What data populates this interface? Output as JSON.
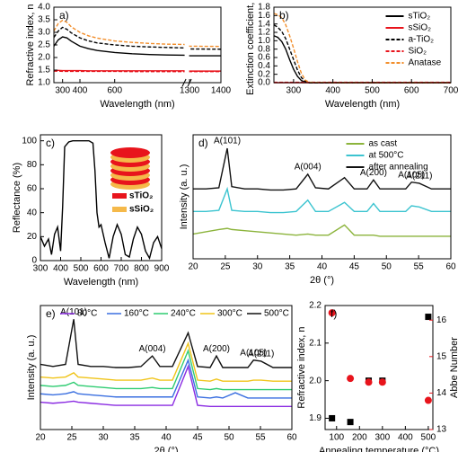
{
  "chart_data": [
    {
      "type": "line",
      "panel_label": "a)",
      "xlabel": "Wavelength (nm)",
      "ylabel": "Refractive index, n",
      "x": [
        250,
        275,
        300,
        325,
        350,
        400,
        450,
        500,
        600,
        700,
        800,
        900,
        1000,
        1300,
        1400
      ],
      "xlim": [
        250,
        1400
      ],
      "xbreak": [
        1000,
        1300
      ],
      "xticks": [
        300,
        400,
        600,
        1300,
        1400
      ],
      "ylim": [
        1.0,
        4.0
      ],
      "yticks": [
        {
          "value": 1,
          "label": "1.0"
        },
        1.5,
        {
          "value": 2,
          "label": "2.0"
        },
        2.5,
        {
          "value": 3,
          "label": "3.0"
        },
        3.5,
        {
          "value": 4,
          "label": "4.0"
        }
      ],
      "series": [
        {
          "color": "#000000",
          "dash": false,
          "values": [
            2.45,
            2.7,
            2.82,
            2.78,
            2.65,
            2.45,
            2.35,
            2.28,
            2.2,
            2.15,
            2.12,
            2.1,
            2.09,
            2.07,
            2.07
          ]
        },
        {
          "color": "#e8141c",
          "dash": false,
          "values": [
            1.49,
            1.49,
            1.48,
            1.48,
            1.48,
            1.48,
            1.47,
            1.47,
            1.47,
            1.47,
            1.47,
            1.47,
            1.47,
            1.46,
            1.46
          ]
        },
        {
          "color": "#000000",
          "dash": true,
          "values": [
            2.8,
            3.05,
            3.2,
            3.12,
            2.98,
            2.78,
            2.66,
            2.58,
            2.5,
            2.45,
            2.42,
            2.4,
            2.38,
            2.34,
            2.33
          ]
        },
        {
          "color": "#e8141c",
          "dash": true,
          "values": [
            1.46,
            1.46,
            1.45,
            1.45,
            1.45,
            1.45,
            1.45,
            1.45,
            1.45,
            1.44,
            1.44,
            1.44,
            1.44,
            1.44,
            1.44
          ]
        },
        {
          "color": "#f28e2b",
          "dash": true,
          "values": [
            3.05,
            3.35,
            3.48,
            3.4,
            3.22,
            3.0,
            2.86,
            2.77,
            2.66,
            2.6,
            2.56,
            2.53,
            2.52,
            2.45,
            2.44
          ]
        }
      ]
    },
    {
      "type": "line",
      "panel_label": "b)",
      "xlabel": "Wavelength (nm)",
      "ylabel": "Extinction coefficient, k",
      "x": [
        250,
        260,
        270,
        280,
        290,
        300,
        310,
        320,
        330,
        340,
        400,
        500,
        600,
        700
      ],
      "xlim": [
        250,
        700
      ],
      "xticks": [
        300,
        400,
        500,
        600,
        700
      ],
      "ylim": [
        0,
        1.8
      ],
      "yticks": [
        {
          "value": 0,
          "label": "0.0"
        },
        0.2,
        0.4,
        0.6,
        0.8,
        {
          "value": 1,
          "label": "1.0"
        },
        1.2,
        1.4,
        1.6,
        1.8
      ],
      "legend": "upper right",
      "series": [
        {
          "name": "sTiO₂",
          "color": "#000000",
          "dash": false,
          "values": [
            1.12,
            1.08,
            0.98,
            0.8,
            0.55,
            0.32,
            0.15,
            0.05,
            0.01,
            0,
            0,
            0,
            0,
            0
          ]
        },
        {
          "name": "sSiO₂",
          "color": "#e8141c",
          "dash": false,
          "values": [
            0,
            0,
            0,
            0,
            0,
            0,
            0,
            0,
            0,
            0,
            0,
            0,
            0,
            0
          ]
        },
        {
          "name": "a-TiO₂",
          "color": "#000000",
          "dash": true,
          "values": [
            1.38,
            1.32,
            1.22,
            1.05,
            0.8,
            0.55,
            0.3,
            0.12,
            0.03,
            0,
            0,
            0,
            0,
            0
          ]
        },
        {
          "name": "SiO₂",
          "color": "#e8141c",
          "dash": true,
          "values": [
            0.01,
            0.01,
            0.01,
            0.01,
            0.01,
            0.01,
            0.01,
            0.01,
            0.01,
            0.01,
            0.01,
            0.01,
            0.01,
            0.01
          ]
        },
        {
          "name": "Anatase",
          "color": "#f28e2b",
          "dash": true,
          "values": [
            1.65,
            1.62,
            1.55,
            1.38,
            1.12,
            0.82,
            0.5,
            0.22,
            0.06,
            0.01,
            0,
            0,
            0,
            0
          ]
        }
      ]
    },
    {
      "type": "line",
      "panel_label": "c)",
      "xlabel": "Wavelength (nm)",
      "ylabel": "Reflectance (%)",
      "x": [
        300,
        320,
        340,
        355,
        370,
        385,
        400,
        410,
        420,
        440,
        460,
        500,
        540,
        560,
        570,
        580,
        590,
        600,
        620,
        640,
        660,
        680,
        700,
        720,
        740,
        760,
        780,
        800,
        820,
        840,
        860,
        880,
        900
      ],
      "xlim": [
        300,
        900
      ],
      "xticks": [
        300,
        400,
        500,
        600,
        700,
        800,
        900
      ],
      "ylim": [
        0,
        105
      ],
      "yticks": [
        0,
        20,
        40,
        60,
        80,
        100
      ],
      "inset_legend": [
        {
          "name": "sTiO₂",
          "color": "#e8141c"
        },
        {
          "name": "sSiO₂",
          "color": "#f5b94a"
        }
      ],
      "series": [
        {
          "color": "#000000",
          "dash": false,
          "values": [
            20,
            12,
            18,
            5,
            22,
            28,
            8,
            45,
            95,
            99,
            100,
            100,
            100,
            98,
            75,
            40,
            28,
            30,
            15,
            2,
            20,
            30,
            22,
            5,
            3,
            18,
            28,
            22,
            8,
            2,
            15,
            20,
            10
          ]
        }
      ]
    },
    {
      "type": "line",
      "panel_label": "d)",
      "xlabel": "2θ (°)",
      "ylabel": "Intensity (a. u.)",
      "x": [
        20,
        22,
        24,
        25.3,
        26,
        28,
        30,
        32,
        34,
        36,
        37.8,
        39,
        41,
        43.5,
        45,
        47,
        48,
        49,
        51,
        53,
        53.9,
        55.1,
        57,
        60
      ],
      "xlim": [
        20,
        60
      ],
      "xticks": [
        20,
        25,
        30,
        35,
        40,
        45,
        50,
        55,
        60
      ],
      "ylim": [
        0,
        110
      ],
      "legend": "upper right",
      "annotations": [
        {
          "text": "A(101)",
          "x": 25.3
        },
        {
          "text": "A(004)",
          "x": 37.8
        },
        {
          "text": "A(200)",
          "x": 48
        },
        {
          "text": "A(105)",
          "x": 53.9
        },
        {
          "text": "A(211)",
          "x": 55.1
        }
      ],
      "series": [
        {
          "name": "as cast",
          "color": "#8cb43c",
          "dash": false,
          "values": [
            22,
            24,
            26,
            27,
            26,
            25,
            24,
            23,
            22,
            21,
            22,
            21,
            21,
            30,
            21,
            21,
            21,
            20,
            20,
            20,
            20,
            20,
            20,
            20
          ]
        },
        {
          "name": "at 500°C",
          "color": "#3cc4d0",
          "dash": false,
          "values": [
            42,
            42,
            43,
            62,
            43,
            42,
            42,
            41,
            41,
            42,
            52,
            42,
            42,
            50,
            42,
            42,
            49,
            42,
            42,
            42,
            47,
            46,
            42,
            42
          ]
        },
        {
          "name": "after annealing",
          "color": "#111111",
          "dash": false,
          "values": [
            62,
            62,
            63,
            98,
            64,
            62,
            62,
            61,
            61,
            62,
            75,
            63,
            62,
            72,
            62,
            62,
            70,
            62,
            62,
            62,
            68,
            67,
            62,
            62
          ]
        }
      ]
    },
    {
      "type": "line",
      "panel_label": "e)",
      "xlabel": "2θ (°)",
      "ylabel": "Intensity (a. u.)",
      "x": [
        20,
        22,
        24,
        25.3,
        26,
        28,
        30,
        32,
        34,
        36,
        37.8,
        39,
        41,
        43.5,
        45,
        47,
        48,
        49,
        51,
        53,
        53.9,
        55.1,
        57,
        60
      ],
      "xlim": [
        20,
        60
      ],
      "xticks": [
        20,
        25,
        30,
        35,
        40,
        45,
        50,
        55,
        60
      ],
      "ylim": [
        0,
        118
      ],
      "legend": "top",
      "annotations": [
        {
          "text": "A(101)",
          "x": 25.3
        },
        {
          "text": "A(004)",
          "x": 37.8
        },
        {
          "text": "A(200)",
          "x": 48
        },
        {
          "text": "A(105)",
          "x": 53.9
        },
        {
          "text": "A(211)",
          "x": 55.1
        }
      ],
      "series": [
        {
          "name": "80°C",
          "color": "#8a2be2",
          "dash": false,
          "values": [
            26,
            25,
            26,
            27,
            26,
            25,
            24,
            23,
            23,
            23,
            23,
            23,
            23,
            60,
            23,
            22,
            22,
            22,
            22,
            22,
            22,
            22,
            22,
            22
          ]
        },
        {
          "name": "160°C",
          "color": "#3a6fe0",
          "dash": false,
          "values": [
            34,
            33,
            34,
            36,
            34,
            33,
            32,
            31,
            31,
            31,
            31,
            31,
            31,
            66,
            31,
            30,
            31,
            30,
            35,
            30,
            30,
            30,
            30,
            30
          ]
        },
        {
          "name": "240°C",
          "color": "#2ecc71",
          "dash": false,
          "values": [
            42,
            41,
            42,
            45,
            42,
            41,
            40,
            39,
            39,
            39,
            40,
            39,
            39,
            75,
            39,
            38,
            39,
            38,
            38,
            38,
            38,
            38,
            38,
            38
          ]
        },
        {
          "name": "300°C",
          "color": "#f0c419",
          "dash": false,
          "values": [
            50,
            49,
            50,
            54,
            50,
            49,
            48,
            47,
            47,
            47,
            49,
            47,
            47,
            82,
            47,
            46,
            48,
            46,
            46,
            46,
            47,
            47,
            46,
            46
          ]
        },
        {
          "name": "500°C",
          "color": "#111111",
          "dash": false,
          "values": [
            62,
            60,
            62,
            105,
            62,
            60,
            60,
            59,
            59,
            60,
            70,
            60,
            60,
            92,
            60,
            59,
            70,
            59,
            59,
            59,
            66,
            65,
            59,
            59
          ]
        }
      ]
    },
    {
      "type": "scatter",
      "panel_label": "f)",
      "xlabel": "Annealing temperature (°C)",
      "ylabel": "Refractive index, n",
      "y2label": "Abbe Number",
      "x": [
        80,
        160,
        240,
        300,
        500
      ],
      "xlim": [
        50,
        520
      ],
      "xticks": [
        100,
        200,
        300,
        400,
        500
      ],
      "ylim": [
        1.87,
        2.2
      ],
      "yticks": [
        1.9,
        {
          "value": 2,
          "label": "2.0"
        },
        2.1,
        2.2
      ],
      "y2lim": [
        13,
        16.4
      ],
      "y2ticks": [
        13,
        14,
        15,
        16
      ],
      "series": [
        {
          "color": "#000000",
          "marker": "square",
          "values": [
            1.9,
            1.89,
            2.0,
            2.0,
            2.17
          ]
        },
        {
          "color": "#e8141c",
          "marker": "circle",
          "axis": "y2",
          "values": [
            16.2,
            14.4,
            14.3,
            14.3,
            13.8
          ]
        }
      ]
    }
  ]
}
